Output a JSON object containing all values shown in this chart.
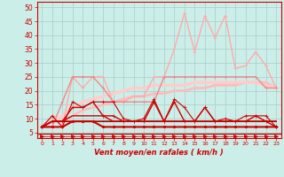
{
  "x": [
    0,
    1,
    2,
    3,
    4,
    5,
    6,
    7,
    8,
    9,
    10,
    11,
    12,
    13,
    14,
    15,
    16,
    17,
    18,
    19,
    20,
    21,
    22,
    23
  ],
  "background_color": "#cceee8",
  "grid_color": "#aacccc",
  "xlabel": "Vent moyen/en rafales ( km/h )",
  "xlabel_color": "#cc0000",
  "ylim": [
    3,
    52
  ],
  "xlim": [
    -0.5,
    23.5
  ],
  "yticks": [
    5,
    10,
    15,
    20,
    25,
    30,
    35,
    40,
    45,
    50
  ],
  "lines": [
    {
      "y": [
        7,
        11,
        7,
        16,
        14,
        16,
        16,
        16,
        10,
        9,
        10,
        17,
        9,
        17,
        14,
        9,
        14,
        9,
        10,
        9,
        11,
        11,
        11,
        7
      ],
      "color": "#cc0000",
      "lw": 0.8,
      "marker": "+",
      "ms": 3.0,
      "zorder": 6
    },
    {
      "y": [
        7,
        7,
        7,
        9,
        9,
        9,
        7,
        7,
        7,
        7,
        7,
        7,
        7,
        7,
        7,
        7,
        7,
        7,
        7,
        7,
        7,
        7,
        7,
        7
      ],
      "color": "#cc0000",
      "lw": 1.5,
      "marker": "o",
      "ms": 1.8,
      "zorder": 6
    },
    {
      "y": [
        7,
        9,
        9,
        9,
        9,
        9,
        9,
        9,
        9,
        9,
        9,
        9,
        9,
        9,
        9,
        9,
        9,
        9,
        9,
        9,
        9,
        9,
        9,
        9
      ],
      "color": "#aa0000",
      "lw": 1.2,
      "marker": null,
      "ms": 0,
      "zorder": 5
    },
    {
      "y": [
        7,
        9,
        9,
        11,
        11,
        11,
        11,
        9,
        9,
        9,
        9,
        9,
        9,
        9,
        9,
        9,
        9,
        9,
        9,
        9,
        9,
        9,
        9,
        9
      ],
      "color": "#cc0000",
      "lw": 1.0,
      "marker": null,
      "ms": 0,
      "zorder": 5
    },
    {
      "y": [
        7,
        9,
        9,
        14,
        14,
        16,
        11,
        11,
        9,
        9,
        9,
        16,
        9,
        16,
        9,
        9,
        14,
        9,
        9,
        9,
        9,
        11,
        9,
        7
      ],
      "color": "#cc0000",
      "lw": 1.0,
      "marker": "+",
      "ms": 3.0,
      "zorder": 6
    },
    {
      "y": [
        7,
        7,
        16,
        25,
        25,
        25,
        21,
        16,
        16,
        16,
        16,
        16,
        25,
        25,
        25,
        25,
        25,
        25,
        25,
        25,
        25,
        25,
        21,
        21
      ],
      "color": "#ee8888",
      "lw": 1.0,
      "marker": "+",
      "ms": 3.0,
      "zorder": 4
    },
    {
      "y": [
        7,
        11,
        7,
        25,
        21,
        25,
        25,
        16,
        16,
        18,
        18,
        25,
        25,
        35,
        48,
        34,
        47,
        39,
        47,
        28,
        29,
        34,
        29,
        21
      ],
      "color": "#ffaaaa",
      "lw": 1.0,
      "marker": "+",
      "ms": 3.0,
      "zorder": 3
    },
    {
      "y": [
        7,
        9,
        9,
        11,
        13,
        14,
        15,
        16,
        17,
        18,
        18,
        19,
        19,
        20,
        20,
        21,
        21,
        22,
        22,
        22,
        23,
        23,
        23,
        21
      ],
      "color": "#ffbbbb",
      "lw": 2.0,
      "marker": null,
      "ms": 0,
      "zorder": 2
    },
    {
      "y": [
        7,
        9,
        11,
        14,
        16,
        17,
        18,
        19,
        20,
        21,
        21,
        22,
        22,
        22,
        22,
        23,
        23,
        23,
        23,
        23,
        23,
        23,
        22,
        21
      ],
      "color": "#ffcccc",
      "lw": 2.5,
      "marker": null,
      "ms": 0,
      "zorder": 2
    },
    {
      "y": [
        3.5,
        3.5,
        3.5,
        3.5,
        3.5,
        3.5,
        3.5,
        3.5,
        3.5,
        3.5,
        3.5,
        3.5,
        3.5,
        3.5,
        3.5,
        3.5,
        3.5,
        3.5,
        3.5,
        3.5,
        3.5,
        3.5,
        3.5,
        3.5
      ],
      "color": "#cc0000",
      "lw": 0.5,
      "marker": ">",
      "ms": 3.0,
      "zorder": 7
    }
  ]
}
